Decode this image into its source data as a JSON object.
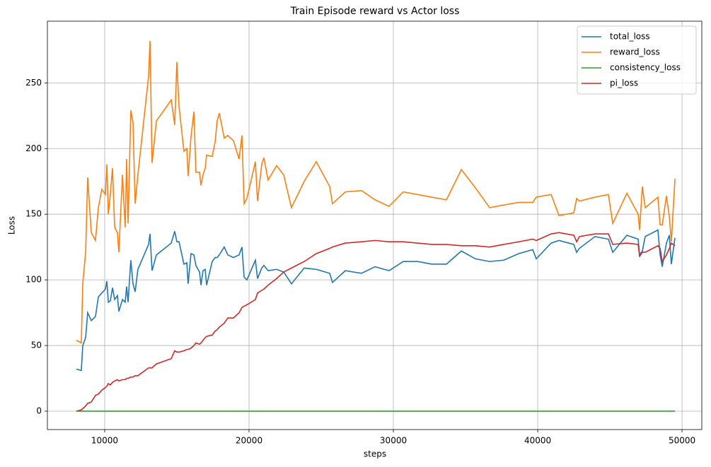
{
  "chart_data": {
    "type": "line",
    "title": "Train Episode reward vs Actor loss",
    "x_label": "steps",
    "y_label": "Loss",
    "x": [
      8040,
      8380,
      8480,
      8680,
      8820,
      9070,
      9360,
      9560,
      9800,
      10050,
      10150,
      10250,
      10390,
      10540,
      10690,
      10880,
      10980,
      11230,
      11420,
      11520,
      11620,
      11810,
      11960,
      12110,
      12300,
      13040,
      13140,
      13280,
      13580,
      14610,
      14850,
      15000,
      15150,
      15490,
      15690,
      15780,
      15980,
      16180,
      16320,
      16570,
      16670,
      16810,
      16960,
      17060,
      17450,
      17650,
      17790,
      17940,
      18280,
      18530,
      18920,
      19310,
      19510,
      19660,
      19850,
      20440,
      20590,
      20880,
      21030,
      21320,
      21910,
      22400,
      22940,
      23820,
      24660,
      25590,
      25780,
      26670,
      27790,
      28730,
      29700,
      30690,
      31670,
      32650,
      33680,
      34710,
      35690,
      36670,
      37650,
      38680,
      39660,
      39900,
      40930,
      41470,
      42500,
      42700,
      42890,
      43970,
      44900,
      45200,
      46180,
      46960,
      47060,
      47250,
      47450,
      48330,
      48480,
      48630,
      48920,
      49120,
      49260,
      49510
    ],
    "series": [
      {
        "name": "total_loss",
        "color": "#1f77b4",
        "values": [
          32,
          31,
          50,
          56,
          75,
          69,
          72,
          87,
          90,
          93,
          99,
          83,
          84,
          94,
          85,
          88,
          76,
          85,
          83,
          95,
          83,
          115,
          97,
          91,
          108,
          127,
          135,
          107,
          119,
          128,
          137,
          129,
          129,
          112,
          113,
          97,
          120,
          119,
          111,
          106,
          96,
          107,
          108,
          96,
          114,
          117,
          117,
          119,
          125,
          119,
          117,
          119,
          125,
          102,
          100,
          115,
          101,
          109,
          111,
          107,
          108,
          106,
          97,
          109,
          108,
          105,
          98,
          107,
          105,
          110,
          107,
          114,
          114,
          112,
          112,
          122,
          116,
          114,
          115,
          120,
          123,
          116,
          128,
          130,
          127,
          121,
          124,
          133,
          131,
          121,
          134,
          131,
          119,
          122,
          133,
          138,
          119,
          110,
          128,
          134,
          112,
          132
        ]
      },
      {
        "name": "reward_loss",
        "color": "#ff7f0e",
        "values": [
          54,
          52,
          97,
          121,
          178,
          136,
          130,
          155,
          169,
          165,
          188,
          150,
          165,
          185,
          140,
          136,
          121,
          180,
          140,
          192,
          143,
          229,
          220,
          158,
          180,
          255,
          282,
          189,
          221,
          237,
          218,
          266,
          232,
          198,
          200,
          179,
          209,
          228,
          182,
          182,
          172,
          180,
          185,
          195,
          194,
          205,
          221,
          227,
          208,
          210,
          206,
          192,
          210,
          158,
          162,
          190,
          160,
          188,
          193,
          176,
          187,
          180,
          155,
          175,
          190,
          171,
          158,
          167,
          168,
          161,
          156,
          167,
          165,
          163,
          161,
          184,
          170,
          155,
          157,
          159,
          159,
          163,
          165,
          149,
          151,
          162,
          160,
          163,
          165,
          143,
          166,
          150,
          138,
          171,
          155,
          163,
          142,
          142,
          164,
          148,
          129,
          177
        ]
      },
      {
        "name": "consistency_loss",
        "color": "#2ca02c",
        "values": [
          0,
          0,
          0,
          0,
          0,
          0,
          0,
          0,
          0,
          0,
          0,
          0,
          0,
          0,
          0,
          0,
          0,
          0,
          0,
          0,
          0,
          0,
          0,
          0,
          0,
          0,
          0,
          0,
          0,
          0,
          0,
          0,
          0,
          0,
          0,
          0,
          0,
          0,
          0,
          0,
          0,
          0,
          0,
          0,
          0,
          0,
          0,
          0,
          0,
          0,
          0,
          0,
          0,
          0,
          0,
          0,
          0,
          0,
          0,
          0,
          0,
          0,
          0,
          0,
          0,
          0,
          0,
          0,
          0,
          0,
          0,
          0,
          0,
          0,
          0,
          0,
          0,
          0,
          0,
          0,
          0,
          0,
          0,
          0,
          0,
          0,
          0,
          0,
          0,
          0,
          0,
          0,
          0,
          0,
          0,
          0,
          0,
          0,
          0,
          0,
          0,
          0
        ]
      },
      {
        "name": "pi_loss",
        "color": "#d62728",
        "values": [
          0,
          1,
          2,
          4,
          6,
          7,
          12,
          13,
          16,
          18,
          19,
          21,
          20,
          22,
          23,
          24,
          23,
          24,
          24,
          25,
          25,
          26,
          26,
          27,
          27,
          33,
          33,
          33,
          36,
          40,
          46,
          45,
          45,
          46,
          47,
          47,
          48,
          50,
          52,
          51,
          52,
          54,
          56,
          57,
          58,
          61,
          62,
          64,
          67,
          71,
          71,
          75,
          79,
          80,
          81,
          85,
          90,
          92,
          93,
          96,
          101,
          106,
          109,
          114,
          120,
          124,
          125,
          128,
          129,
          130,
          129,
          129,
          128,
          127,
          127,
          126,
          126,
          125,
          127,
          129,
          131,
          130,
          135,
          136,
          134,
          129,
          133,
          135,
          135,
          127,
          128,
          127,
          118,
          121,
          121,
          126,
          124,
          114,
          119,
          124,
          128,
          126
        ]
      }
    ],
    "xlim": [
      6030,
      51370
    ],
    "xticks": [
      10000,
      20000,
      30000,
      40000,
      50000
    ],
    "ylim": [
      -14,
      297
    ],
    "yticks": [
      0,
      50,
      100,
      150,
      200,
      250
    ],
    "grid": true,
    "legend": "upper-right"
  }
}
